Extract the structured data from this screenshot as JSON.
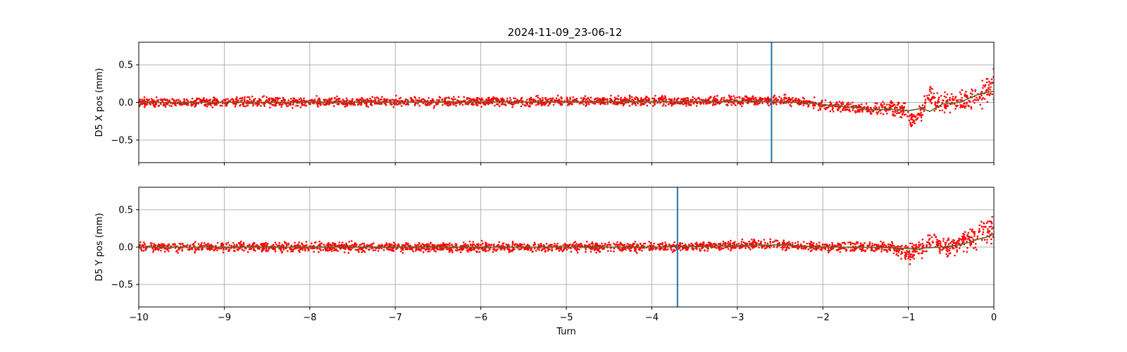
{
  "figure": {
    "title": "2024-11-09_23-06-12"
  },
  "chart_data": [
    {
      "type": "scatter",
      "panel": "top",
      "title": "2024-11-09_23-06-12",
      "xlabel": "",
      "ylabel": "D5 X pos (mm)",
      "xlim": [
        -10,
        0
      ],
      "ylim": [
        -0.8,
        0.8
      ],
      "xticks": [
        -10,
        -9,
        -8,
        -7,
        -6,
        -5,
        -4,
        -3,
        -2,
        -1,
        0
      ],
      "yticks": [
        -0.5,
        0.0,
        0.5
      ],
      "ytick_labels": [
        "−0.5",
        "0.0",
        "0.5"
      ],
      "grid": true,
      "vline_x": -2.6,
      "colors": {
        "points": "#ff0000",
        "trend": "#556b2f",
        "vline": "#1f77b4",
        "grid": "#b0b0b0"
      },
      "series": [
        {
          "marker": "points",
          "baseline": {
            "x": [
              -10,
              -3.2,
              -2.6,
              -2.2,
              -2.0,
              -1.8,
              -1.6,
              -1.4,
              -1.2,
              -1.05,
              -0.95,
              -0.85,
              -0.75,
              -0.7,
              -0.6,
              -0.5,
              -0.4,
              -0.3,
              -0.2,
              -0.1,
              0
            ],
            "y": [
              0.0,
              0.02,
              0.03,
              0.0,
              -0.03,
              -0.05,
              -0.07,
              -0.1,
              -0.08,
              -0.1,
              -0.25,
              -0.12,
              0.15,
              0.0,
              0.0,
              0.02,
              0.0,
              0.05,
              0.1,
              0.15,
              0.2
            ]
          },
          "spread": {
            "x": [
              -10,
              -3,
              -2.2,
              -1.4,
              -1.0,
              -0.8,
              -0.5,
              -0.3,
              0
            ],
            "y": [
              0.05,
              0.05,
              0.05,
              0.06,
              0.09,
              0.1,
              0.1,
              0.13,
              0.16
            ]
          }
        },
        {
          "marker": "trend",
          "x": [
            -10,
            -3.2,
            -2.8,
            -2.6,
            -2.2,
            -2.0,
            -1.8,
            -1.6,
            -1.4,
            -1.2,
            -1.0,
            -0.85,
            -0.75,
            -0.6,
            -0.4,
            -0.3,
            -0.2,
            -0.1,
            0
          ],
          "y": [
            0.0,
            0.01,
            0.02,
            0.01,
            0.0,
            -0.03,
            -0.05,
            -0.07,
            -0.1,
            -0.09,
            -0.11,
            -0.08,
            -0.12,
            -0.02,
            0.0,
            0.05,
            0.1,
            0.13,
            0.15
          ]
        }
      ]
    },
    {
      "type": "scatter",
      "panel": "bottom",
      "title": "",
      "xlabel": "Turn",
      "ylabel": "D5 Y pos (mm)",
      "xlim": [
        -10,
        0
      ],
      "ylim": [
        -0.8,
        0.8
      ],
      "xticks": [
        -10,
        -9,
        -8,
        -7,
        -6,
        -5,
        -4,
        -3,
        -2,
        -1,
        0
      ],
      "xtick_labels": [
        "−10",
        "−9",
        "−8",
        "−7",
        "−6",
        "−5",
        "−4",
        "−3",
        "−2",
        "−1",
        "0"
      ],
      "yticks": [
        -0.5,
        0.0,
        0.5
      ],
      "ytick_labels": [
        "−0.5",
        "0.0",
        "0.5"
      ],
      "grid": true,
      "vline_x": -3.7,
      "colors": {
        "points": "#ff0000",
        "trend": "#556b2f",
        "vline": "#1f77b4",
        "grid": "#b0b0b0"
      },
      "series": [
        {
          "marker": "points",
          "baseline": {
            "x": [
              -10,
              -4,
              -3.5,
              -3.0,
              -2.5,
              -2.0,
              -1.6,
              -1.2,
              -1.0,
              -0.9,
              -0.8,
              -0.7,
              -0.6,
              -0.5,
              -0.4,
              -0.3,
              -0.2,
              -0.1,
              0
            ],
            "y": [
              0.0,
              0.0,
              0.01,
              0.03,
              0.03,
              0.0,
              0.0,
              -0.01,
              -0.1,
              -0.05,
              0.0,
              0.15,
              -0.02,
              0.0,
              0.05,
              0.1,
              0.18,
              0.2,
              0.25
            ]
          },
          "spread": {
            "x": [
              -10,
              -2.2,
              -1.2,
              -1.0,
              -0.8,
              -0.5,
              -0.3,
              0
            ],
            "y": [
              0.05,
              0.05,
              0.06,
              0.09,
              0.1,
              0.1,
              0.13,
              0.15
            ]
          }
        },
        {
          "marker": "trend",
          "x": [
            -10,
            -4,
            -3.5,
            -3.0,
            -2.5,
            -2.0,
            -1.6,
            -1.2,
            -1.0,
            -0.9,
            -0.8,
            -0.6,
            -0.4,
            -0.3,
            -0.2,
            -0.1,
            0
          ],
          "y": [
            0.0,
            0.0,
            0.01,
            0.02,
            0.03,
            0.0,
            0.0,
            -0.01,
            -0.02,
            -0.03,
            -0.01,
            0.0,
            0.03,
            0.06,
            0.1,
            0.13,
            0.17
          ]
        }
      ]
    }
  ]
}
